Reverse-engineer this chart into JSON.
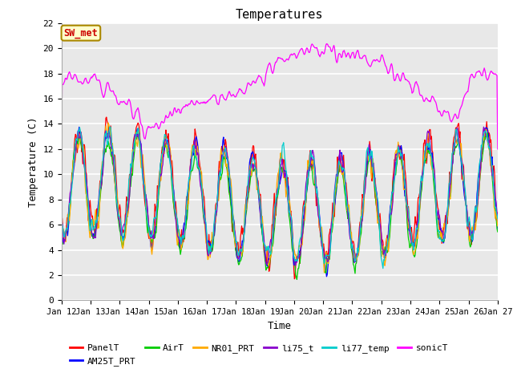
{
  "title": "Temperatures",
  "xlabel": "Time",
  "ylabel": "Temperature (C)",
  "ylim": [
    0,
    22
  ],
  "yticks": [
    0,
    2,
    4,
    6,
    8,
    10,
    12,
    14,
    16,
    18,
    20,
    22
  ],
  "x_tick_labels": [
    "Jan 12",
    "Jan 13",
    "Jan 14",
    "Jan 15",
    "Jan 16",
    "Jan 17",
    "Jan 18",
    "Jan 19",
    "Jan 20",
    "Jan 21",
    "Jan 22",
    "Jan 23",
    "Jan 24",
    "Jan 25",
    "Jan 26",
    "Jan 27"
  ],
  "series_colors": {
    "PanelT": "#ff0000",
    "AM25T_PRT": "#0000ff",
    "AirT": "#00cc00",
    "NR01_PRT": "#ffaa00",
    "li75_t": "#8800cc",
    "li77_temp": "#00cccc",
    "sonicT": "#ff00ff"
  },
  "annotation_text": "SW_met",
  "annotation_color": "#cc0000",
  "annotation_bg": "#ffffcc",
  "annotation_edge": "#aa8800",
  "bg_color": "#e8e8e8",
  "grid_color": "#ffffff",
  "font_family": "monospace"
}
